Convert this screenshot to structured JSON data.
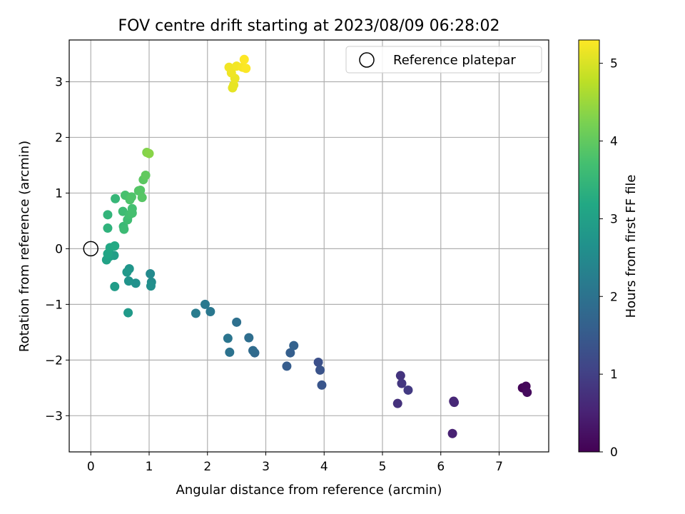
{
  "chart_data": {
    "type": "scatter",
    "title": "FOV centre drift starting at 2023/08/09 06:28:02",
    "xlabel": "Angular distance from reference (arcmin)",
    "ylabel": "Rotation from reference (arcmin)",
    "xlim": [
      -0.37,
      7.85
    ],
    "ylim": [
      -3.65,
      3.75
    ],
    "xticks": [
      "0",
      "1",
      "2",
      "3",
      "4",
      "5",
      "6",
      "7"
    ],
    "yticks": [
      "−3",
      "−2",
      "−1",
      "0",
      "1",
      "2",
      "3"
    ],
    "grid": true,
    "legend": {
      "placement": "top-right",
      "entries": [
        "Reference platepar"
      ]
    },
    "reference_point": {
      "x": 0,
      "y": 0
    },
    "colorbar": {
      "label": "Hours from first FF file",
      "colormap": "viridis",
      "range": [
        0,
        5.3
      ],
      "ticks": [
        "0",
        "1",
        "2",
        "3",
        "4",
        "5"
      ]
    },
    "points": [
      {
        "x": 7.4,
        "y": -2.5,
        "c": 0.05
      },
      {
        "x": 7.46,
        "y": -2.47,
        "c": 0.1
      },
      {
        "x": 7.48,
        "y": -2.58,
        "c": 0.15
      },
      {
        "x": 6.2,
        "y": -3.32,
        "c": 0.5
      },
      {
        "x": 6.22,
        "y": -2.74,
        "c": 0.55
      },
      {
        "x": 6.23,
        "y": -2.76,
        "c": 0.6
      },
      {
        "x": 5.26,
        "y": -2.78,
        "c": 0.75
      },
      {
        "x": 5.31,
        "y": -2.28,
        "c": 0.8
      },
      {
        "x": 5.33,
        "y": -2.42,
        "c": 0.85
      },
      {
        "x": 5.44,
        "y": -2.54,
        "c": 0.9
      },
      {
        "x": 3.9,
        "y": -2.04,
        "c": 1.3
      },
      {
        "x": 3.93,
        "y": -2.18,
        "c": 1.35
      },
      {
        "x": 3.96,
        "y": -2.45,
        "c": 1.4
      },
      {
        "x": 3.36,
        "y": -2.11,
        "c": 1.55
      },
      {
        "x": 3.42,
        "y": -1.87,
        "c": 1.6
      },
      {
        "x": 3.48,
        "y": -1.74,
        "c": 1.65
      },
      {
        "x": 2.81,
        "y": -1.87,
        "c": 1.8
      },
      {
        "x": 2.78,
        "y": -1.83,
        "c": 1.85
      },
      {
        "x": 2.71,
        "y": -1.6,
        "c": 1.9
      },
      {
        "x": 2.5,
        "y": -1.32,
        "c": 1.95
      },
      {
        "x": 2.38,
        "y": -1.86,
        "c": 2.0
      },
      {
        "x": 2.35,
        "y": -1.61,
        "c": 2.05
      },
      {
        "x": 2.05,
        "y": -1.13,
        "c": 2.1
      },
      {
        "x": 1.96,
        "y": -1.0,
        "c": 2.15
      },
      {
        "x": 1.8,
        "y": -1.16,
        "c": 2.2
      },
      {
        "x": 1.02,
        "y": -0.45,
        "c": 2.5
      },
      {
        "x": 1.04,
        "y": -0.6,
        "c": 2.55
      },
      {
        "x": 1.03,
        "y": -0.67,
        "c": 2.6
      },
      {
        "x": 0.77,
        "y": -0.62,
        "c": 2.65
      },
      {
        "x": 0.65,
        "y": -0.58,
        "c": 2.7
      },
      {
        "x": 0.66,
        "y": -0.36,
        "c": 2.75
      },
      {
        "x": 0.62,
        "y": -0.42,
        "c": 2.8
      },
      {
        "x": 0.64,
        "y": -1.15,
        "c": 2.85
      },
      {
        "x": 0.41,
        "y": -0.68,
        "c": 2.9
      },
      {
        "x": 0.4,
        "y": -0.12,
        "c": 2.95
      },
      {
        "x": 0.32,
        "y": -0.14,
        "c": 3.0
      },
      {
        "x": 0.27,
        "y": -0.2,
        "c": 3.05
      },
      {
        "x": 0.29,
        "y": -0.09,
        "c": 3.1
      },
      {
        "x": 0.33,
        "y": 0.02,
        "c": 3.15
      },
      {
        "x": 0.41,
        "y": 0.05,
        "c": 3.2
      },
      {
        "x": 0.29,
        "y": 0.37,
        "c": 3.4
      },
      {
        "x": 0.29,
        "y": 0.61,
        "c": 3.45
      },
      {
        "x": 0.42,
        "y": 0.9,
        "c": 3.5
      },
      {
        "x": 0.56,
        "y": 0.4,
        "c": 3.55
      },
      {
        "x": 0.57,
        "y": 0.35,
        "c": 3.6
      },
      {
        "x": 0.55,
        "y": 0.67,
        "c": 3.62
      },
      {
        "x": 0.63,
        "y": 0.52,
        "c": 3.65
      },
      {
        "x": 0.66,
        "y": 0.61,
        "c": 3.68
      },
      {
        "x": 0.71,
        "y": 0.72,
        "c": 3.7
      },
      {
        "x": 0.71,
        "y": 0.64,
        "c": 3.72
      },
      {
        "x": 0.59,
        "y": 0.96,
        "c": 3.75
      },
      {
        "x": 0.67,
        "y": 0.88,
        "c": 3.8
      },
      {
        "x": 0.7,
        "y": 0.93,
        "c": 3.82
      },
      {
        "x": 0.82,
        "y": 1.04,
        "c": 3.85
      },
      {
        "x": 0.85,
        "y": 1.05,
        "c": 3.88
      },
      {
        "x": 0.88,
        "y": 0.92,
        "c": 3.9
      },
      {
        "x": 0.9,
        "y": 1.24,
        "c": 3.95
      },
      {
        "x": 0.94,
        "y": 1.32,
        "c": 4.0
      },
      {
        "x": 0.96,
        "y": 1.73,
        "c": 4.3
      },
      {
        "x": 1.0,
        "y": 1.71,
        "c": 4.35
      },
      {
        "x": 2.43,
        "y": 2.89,
        "c": 5.1
      },
      {
        "x": 2.45,
        "y": 2.94,
        "c": 5.12
      },
      {
        "x": 2.47,
        "y": 3.06,
        "c": 5.15
      },
      {
        "x": 2.41,
        "y": 3.16,
        "c": 5.18
      },
      {
        "x": 2.37,
        "y": 3.26,
        "c": 5.2
      },
      {
        "x": 2.5,
        "y": 3.28,
        "c": 5.22
      },
      {
        "x": 2.6,
        "y": 3.26,
        "c": 5.25
      },
      {
        "x": 2.66,
        "y": 3.24,
        "c": 5.28
      },
      {
        "x": 2.63,
        "y": 3.4,
        "c": 5.3
      }
    ]
  }
}
